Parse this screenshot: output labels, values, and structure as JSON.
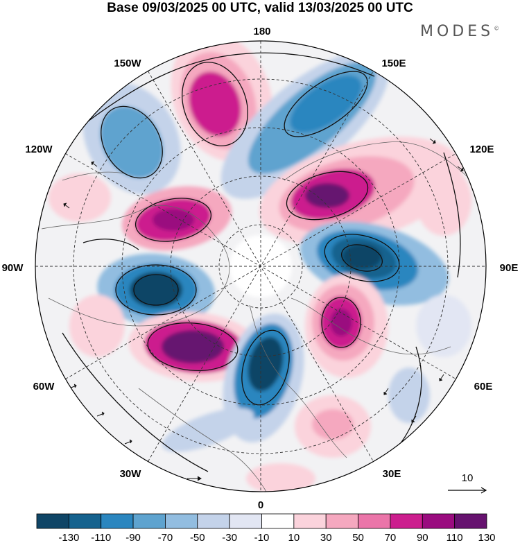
{
  "title": "Base 09/03/2025 00 UTC, valid 13/03/2025 00 UTC",
  "brand": "MODES",
  "brand_mark": "©",
  "longitude_labels": {
    "n": "180",
    "ne": "150E",
    "e1": "120E",
    "e": "90E",
    "e2": "60E",
    "se": "30E",
    "s": "0",
    "sw": "30W",
    "w2": "60W",
    "w": "90W",
    "w1": "120W",
    "nw": "150W"
  },
  "vector_reference": {
    "label": "10"
  },
  "colorbar": {
    "labels": [
      "-130",
      "-110",
      "-90",
      "-70",
      "-50",
      "-30",
      "-10",
      "10",
      "30",
      "50",
      "70",
      "90",
      "110",
      "130"
    ],
    "colors": [
      "#0f4566",
      "#15628e",
      "#2b86bf",
      "#5ea3cf",
      "#92bde0",
      "#c4d3ea",
      "#e2e6f3",
      "#ffffff",
      "#fbd3dc",
      "#f5a8bf",
      "#eb75a9",
      "#cc1e8e",
      "#9a0c7f",
      "#66126f"
    ]
  }
}
